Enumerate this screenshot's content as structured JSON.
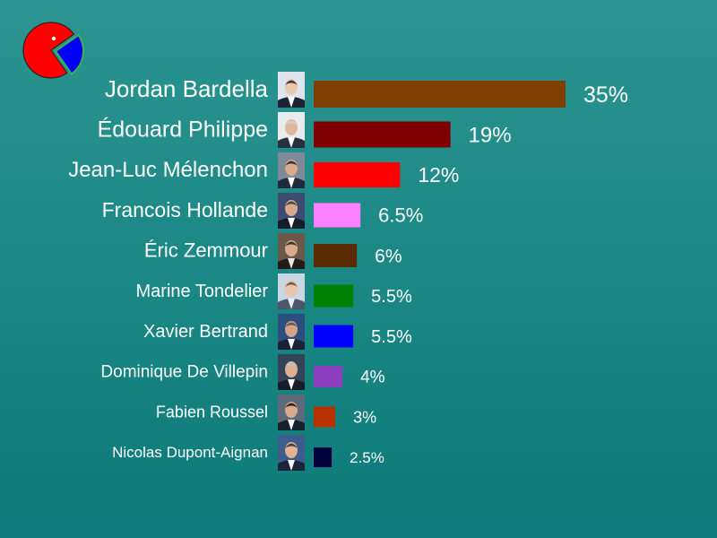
{
  "logo": {
    "name": "pie-logo-icon",
    "colors": {
      "body": "#ff0000",
      "wedge": "#0000ff",
      "wedge_outline": "#3cb44b",
      "eye": "#ffffff"
    }
  },
  "chart_data": {
    "type": "bar",
    "orientation": "horizontal",
    "title": "",
    "xlabel": "",
    "ylabel": "",
    "xlim": [
      0,
      35
    ],
    "grid": false,
    "legend": "none",
    "value_suffix": "%",
    "categories": [
      "Jordan Bardella",
      "Édouard Philippe",
      "Jean-Luc Mélenchon",
      "Francois Hollande",
      "Éric Zemmour",
      "Marine Tondelier",
      "Xavier Bertrand",
      "Dominique De Villepin",
      "Fabien Roussel",
      "Nicolas Dupont-Aignan"
    ],
    "values": [
      35,
      19,
      12,
      6.5,
      6,
      5.5,
      5.5,
      4,
      3,
      2.5
    ],
    "value_labels": [
      "35%",
      "19%",
      "12%",
      "6.5%",
      "6%",
      "5.5%",
      "5.5%",
      "4%",
      "3%",
      "2.5%"
    ],
    "colors": [
      "#7f3f00",
      "#7f0000",
      "#ff0000",
      "#ff80ff",
      "#5a2a00",
      "#008000",
      "#0000ff",
      "#8b3fbf",
      "#b83200",
      "#00003f"
    ],
    "portrait_colors": [
      {
        "bg": "#dfe5ee",
        "skin": "#e8c9b0",
        "hair": "#4a3a2c",
        "suit": "#1d2433",
        "shirt": "#ffffff"
      },
      {
        "bg": "#e9ecef",
        "skin": "#e0b89d",
        "hair": "#cfcfcf",
        "suit": "#27303f",
        "shirt": "#ffffff"
      },
      {
        "bg": "#7f8a99",
        "skin": "#d9ab8b",
        "hair": "#3a3530",
        "suit": "#1f2a3a",
        "shirt": "#ffffff"
      },
      {
        "bg": "#3b4c70",
        "skin": "#d9a98c",
        "hair": "#4a4a4a",
        "suit": "#151b2b",
        "shirt": "#ffffff"
      },
      {
        "bg": "#6b5a4a",
        "skin": "#d8ab8c",
        "hair": "#3d3430",
        "suit": "#221c18",
        "shirt": "#e6e6e6"
      },
      {
        "bg": "#c8d7e2",
        "skin": "#e8c6ad",
        "hair": "#7a5a40",
        "suit": "#4d566a",
        "shirt": "#f0f0f0"
      },
      {
        "bg": "#2e4d80",
        "skin": "#d3a384",
        "hair": "#5a5a5a",
        "suit": "#1a2236",
        "shirt": "#ffffff"
      },
      {
        "bg": "#334458",
        "skin": "#ddb094",
        "hair": "#bfbfbf",
        "suit": "#161d2a",
        "shirt": "#ffffff"
      },
      {
        "bg": "#5d6a7a",
        "skin": "#dba88a",
        "hair": "#2b2622",
        "suit": "#181f2c",
        "shirt": "#ffffff"
      },
      {
        "bg": "#3d5e8c",
        "skin": "#e0b296",
        "hair": "#4a3f36",
        "suit": "#1b2438",
        "shirt": "#ffffff"
      }
    ]
  }
}
